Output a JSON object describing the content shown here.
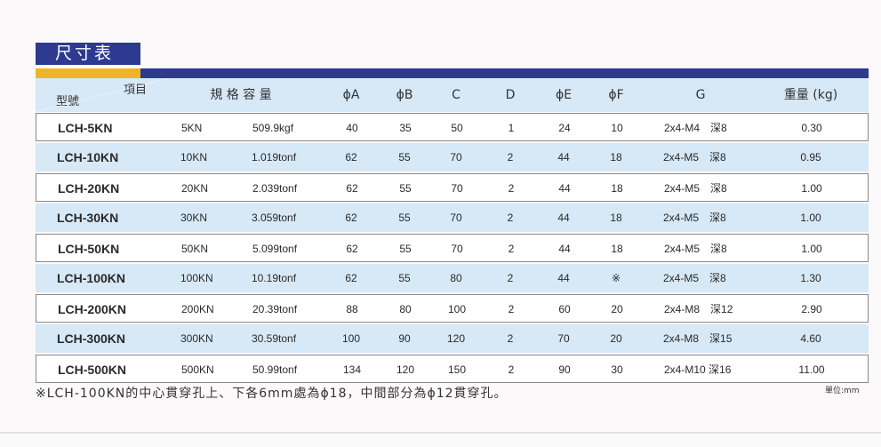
{
  "title": "尺寸表",
  "colors": {
    "navy": "#2d3a8f",
    "orange": "#f0b428",
    "row_blue": "#d7e8f6"
  },
  "header": {
    "model": "型號",
    "item": "項目",
    "capacity": "規 格 容 量",
    "phiA": "ϕA",
    "phiB": "ϕB",
    "C": "C",
    "D": "D",
    "phiE": "ϕE",
    "phiF": "ϕF",
    "G": "G",
    "weight": "重量 (kg)"
  },
  "rows": [
    {
      "model": "LCH-5KN",
      "cap_kn": "5KN",
      "cap_unit": "509.9kgf",
      "A": "40",
      "B": "35",
      "C": "50",
      "D": "1",
      "E": "24",
      "F": "10",
      "G": "2x4-M4　深8",
      "weight": "0.30"
    },
    {
      "model": "LCH-10KN",
      "cap_kn": "10KN",
      "cap_unit": "1.019tonf",
      "A": "62",
      "B": "55",
      "C": "70",
      "D": "2",
      "E": "44",
      "F": "18",
      "G": "2x4-M5　深8",
      "weight": "0.95"
    },
    {
      "model": "LCH-20KN",
      "cap_kn": "20KN",
      "cap_unit": "2.039tonf",
      "A": "62",
      "B": "55",
      "C": "70",
      "D": "2",
      "E": "44",
      "F": "18",
      "G": "2x4-M5　深8",
      "weight": "1.00"
    },
    {
      "model": "LCH-30KN",
      "cap_kn": "30KN",
      "cap_unit": "3.059tonf",
      "A": "62",
      "B": "55",
      "C": "70",
      "D": "2",
      "E": "44",
      "F": "18",
      "G": "2x4-M5　深8",
      "weight": "1.00"
    },
    {
      "model": "LCH-50KN",
      "cap_kn": "50KN",
      "cap_unit": "5.099tonf",
      "A": "62",
      "B": "55",
      "C": "70",
      "D": "2",
      "E": "44",
      "F": "18",
      "G": "2x4-M5　深8",
      "weight": "1.00"
    },
    {
      "model": "LCH-100KN",
      "cap_kn": "100KN",
      "cap_unit": "10.19tonf",
      "A": "62",
      "B": "55",
      "C": "80",
      "D": "2",
      "E": "44",
      "F": "※",
      "G": "2x4-M5　深8",
      "weight": "1.30"
    },
    {
      "model": "LCH-200KN",
      "cap_kn": "200KN",
      "cap_unit": "20.39tonf",
      "A": "88",
      "B": "80",
      "C": "100",
      "D": "2",
      "E": "60",
      "F": "20",
      "G": "2x4-M8　深12",
      "weight": "2.90"
    },
    {
      "model": "LCH-300KN",
      "cap_kn": "300KN",
      "cap_unit": "30.59tonf",
      "A": "100",
      "B": "90",
      "C": "120",
      "D": "2",
      "E": "70",
      "F": "20",
      "G": "2x4-M8　深15",
      "weight": "4.60"
    },
    {
      "model": "LCH-500KN",
      "cap_kn": "500KN",
      "cap_unit": "50.99tonf",
      "A": "134",
      "B": "120",
      "C": "150",
      "D": "2",
      "E": "90",
      "F": "30",
      "G": "2x4-M10 深16",
      "weight": "11.00"
    }
  ],
  "note": "※LCH-100KN的中心貫穿孔上、下各6mm處為ϕ18，中間部分為ϕ12貫穿孔。",
  "unit": "單位:mm"
}
